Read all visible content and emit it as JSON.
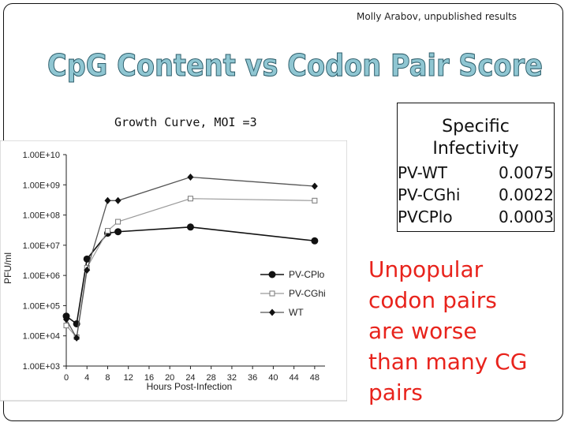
{
  "header": {
    "credit": "Molly Arabov, unpublished results"
  },
  "slide": {
    "title": "CpG Content vs Codon Pair Score",
    "title_color": "#8fc6d2",
    "growth_label": "Growth Curve, MOI =3",
    "note_lines": [
      "Unpopular",
      "codon pairs",
      "are worse",
      "than many CG",
      "pairs"
    ],
    "note_color": "#e8231c"
  },
  "infectivity": {
    "heading_lines": [
      "Specific",
      "Infectivity"
    ],
    "rows": [
      {
        "name": "PV-WT",
        "value": "0.0075"
      },
      {
        "name": "PV-CGhi",
        "value": "0.0022"
      },
      {
        "name": "PVCPlo",
        "value": "0.0003"
      }
    ]
  },
  "chart_data": {
    "type": "line",
    "xlabel": "Hours Post-Infection",
    "ylabel": "PFU/ml",
    "xlim": [
      0,
      50
    ],
    "x_ticks": [
      0,
      4,
      8,
      12,
      16,
      20,
      24,
      28,
      32,
      36,
      40,
      44,
      48
    ],
    "ylog": true,
    "ylim": [
      1000,
      10000000000
    ],
    "y_ticks": [
      1000,
      10000,
      100000,
      1000000,
      10000000,
      100000000,
      1000000000,
      10000000000
    ],
    "y_tick_labels": [
      "1.00E+03",
      "1.00E+04",
      "1.00E+05",
      "1.00E+06",
      "1.00E+07",
      "1.00E+08",
      "1.00E+09",
      "1.00E+10"
    ],
    "grid": false,
    "legend_position": "right",
    "series": [
      {
        "name": "PV-CPlo",
        "marker": "filled-circle",
        "x": [
          0,
          2,
          4,
          8,
          10,
          24,
          48
        ],
        "y": [
          45000,
          25000,
          3500000,
          25000000,
          28000000,
          40000000,
          14000000
        ]
      },
      {
        "name": "PV-CGhi",
        "marker": "open-square",
        "x": [
          0,
          2,
          4,
          8,
          10,
          24,
          48
        ],
        "y": [
          22000,
          9000,
          1800000,
          30000000,
          60000000,
          350000000,
          300000000
        ]
      },
      {
        "name": "WT",
        "marker": "diamond",
        "x": [
          0,
          2,
          4,
          8,
          10,
          24,
          48
        ],
        "y": [
          35000,
          8500,
          1500000,
          300000000,
          300000000,
          1800000000,
          900000000
        ]
      }
    ]
  }
}
